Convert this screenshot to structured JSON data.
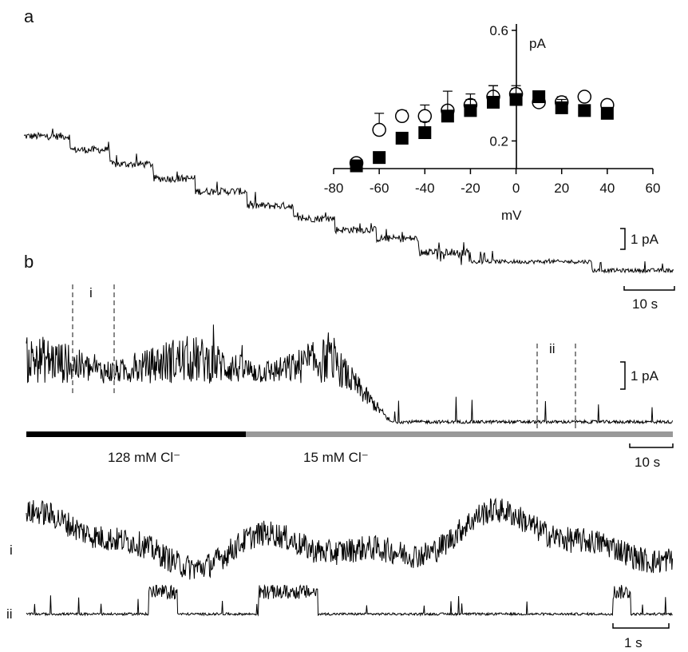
{
  "figure": {
    "panel_a_label": "a",
    "panel_b_label": "b"
  },
  "chart_data": [
    {
      "type": "scatter",
      "panel": "a (inset)",
      "xlabel": "mV",
      "ylabel": "pA",
      "xlim": [
        -80,
        60
      ],
      "ylim": [
        0.1,
        0.6
      ],
      "xticks": [
        -80,
        -60,
        -40,
        -20,
        0,
        20,
        40,
        60
      ],
      "yticks": [
        0.2,
        0.6
      ],
      "series": [
        {
          "marker": "open-circle",
          "color": "#000000",
          "x": [
            -70,
            -60,
            -50,
            -40,
            -30,
            -20,
            -10,
            0,
            10,
            20,
            30,
            40
          ],
          "y": [
            0.12,
            0.24,
            0.29,
            0.29,
            0.31,
            0.33,
            0.36,
            0.37,
            0.34,
            0.34,
            0.36,
            0.33
          ],
          "error": [
            0.0,
            0.06,
            0.02,
            0.04,
            0.0,
            0.04,
            0.04,
            0.02,
            0.0,
            0.02,
            0.0,
            0.0
          ]
        },
        {
          "marker": "filled-square",
          "color": "#000000",
          "x": [
            -70,
            -60,
            -50,
            -40,
            -30,
            -20,
            -10,
            0,
            10,
            20,
            30,
            40
          ],
          "y": [
            0.11,
            0.14,
            0.21,
            0.23,
            0.29,
            0.31,
            0.34,
            0.35,
            0.36,
            0.32,
            0.31,
            0.3
          ],
          "error": [
            0.0,
            0.0,
            0.0,
            0.04,
            0.09,
            0.04,
            0.06,
            0.05,
            0.0,
            0.03,
            0.0,
            0.0
          ]
        }
      ]
    },
    {
      "type": "line",
      "panel": "a (trace)",
      "description_free": true,
      "scale_bar_current": "1 pA",
      "scale_bar_time": "10 s"
    },
    {
      "type": "line",
      "panel": "b (trace)",
      "scale_bar_current": "1 pA",
      "scale_bar_time": "10 s",
      "markers": [
        "i",
        "ii"
      ],
      "conditions": [
        {
          "label": "128 mM Cl⁻",
          "color": "#000000"
        },
        {
          "label": "15 mM Cl⁻",
          "color": "#999999"
        }
      ]
    },
    {
      "type": "line",
      "panel": "b (expanded traces)",
      "trace_labels": [
        "i",
        "ii"
      ],
      "scale_bar_time": "1 s"
    }
  ]
}
